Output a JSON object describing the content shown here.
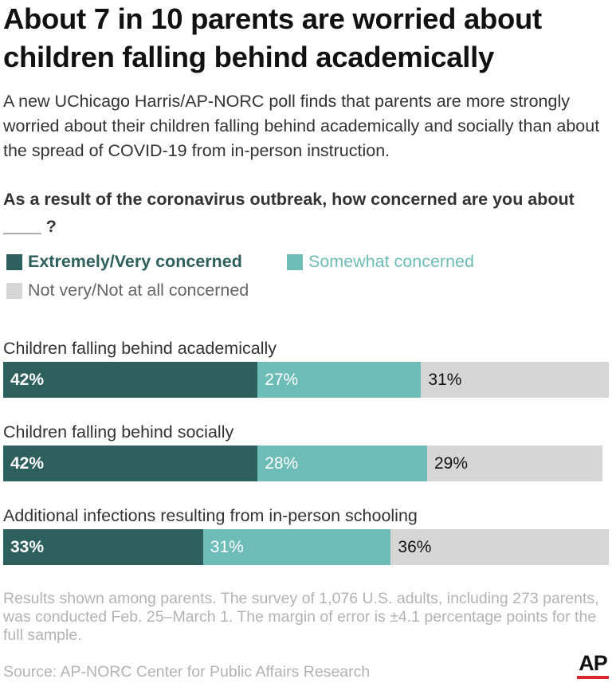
{
  "title": "About 7 in 10 parents are worried about children falling behind academically",
  "subtitle": "A new UChicago Harris/AP-NORC poll finds that parents are more strongly worried about their children falling behind academically and socially than about the spread of COVID-19 from in-person instruction.",
  "question": "As a result of the coronavirus outbreak, how concerned are you about ____ ?",
  "note": "Results shown among parents. The survey of 1,076 U.S. adults, including 273 parents, was conducted Feb. 25–March 1. The margin of error is ±4.1 percentage points for the full sample.",
  "source": "Source: AP-NORC Center for Public Affairs Research",
  "logo_text": "AP",
  "colors": {
    "extremely": "#2d5f5d",
    "somewhat": "#6dbcb7",
    "not": "#d6d6d6",
    "ap_red": "#d9232e"
  },
  "chart_data": {
    "type": "bar",
    "orientation": "horizontal",
    "stacked": true,
    "categories": [
      "Children falling behind academically",
      "Children falling behind socially",
      "Additional infections resulting from in-person schooling"
    ],
    "series": [
      {
        "name": "Extremely/Very concerned",
        "values": [
          42,
          42,
          33
        ],
        "labels": [
          "42%",
          "42%",
          "33%"
        ],
        "color": "#2d5f5d",
        "label_color": "#ffffff"
      },
      {
        "name": "Somewhat concerned",
        "values": [
          27,
          28,
          31
        ],
        "labels": [
          "27%",
          "28%",
          "31%"
        ],
        "color": "#6dbcb7",
        "label_color": "#ffffff"
      },
      {
        "name": "Not very/Not at all concerned",
        "values": [
          31,
          29,
          36
        ],
        "labels": [
          "31%",
          "29%",
          "36%"
        ],
        "color": "#d6d6d6",
        "label_color": "#111111"
      }
    ],
    "xlim": [
      0,
      100
    ],
    "legend": "top",
    "grid": false
  }
}
